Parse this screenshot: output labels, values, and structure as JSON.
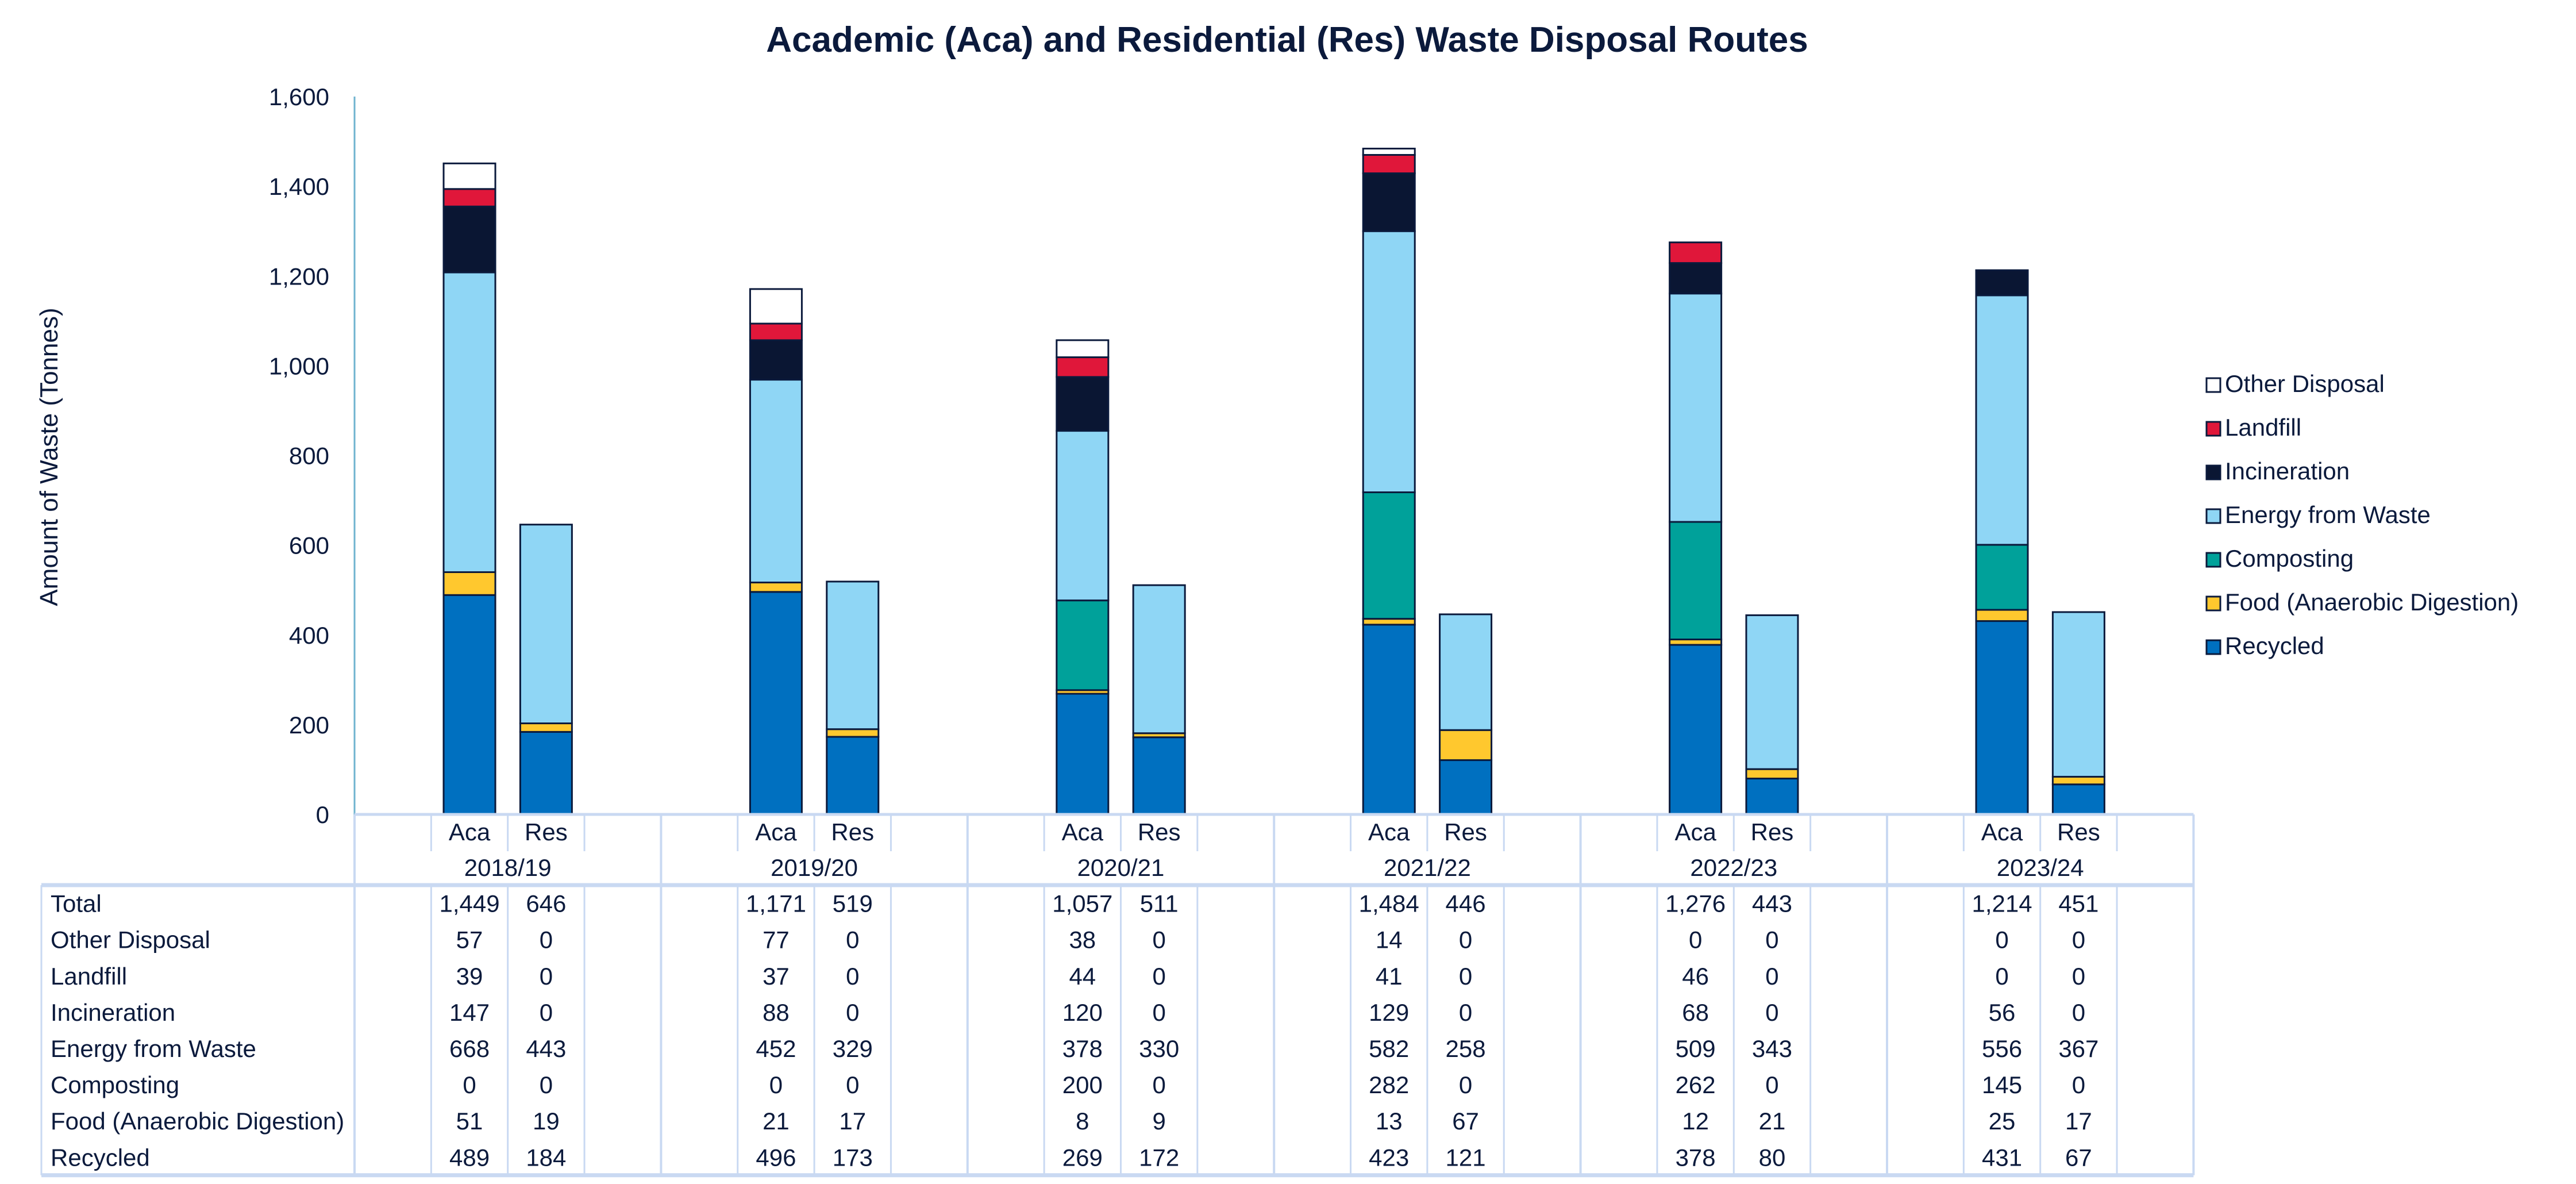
{
  "chart_data": {
    "type": "bar",
    "stacked": true,
    "title": "Academic (Aca) and Residential (Res) Waste Disposal Routes",
    "ylabel": "Amount of Waste (Tonnes)",
    "xlabel": "",
    "ylim": [
      0,
      1600
    ],
    "yticks": [
      "0",
      "200",
      "400",
      "600",
      "800",
      "1,000",
      "1,200",
      "1,400",
      "1,600"
    ],
    "ytick_values": [
      0,
      200,
      400,
      600,
      800,
      1000,
      1200,
      1400,
      1600
    ],
    "grid": false,
    "legend_placement": "right",
    "groups": [
      "2018/19",
      "2019/20",
      "2020/21",
      "2021/22",
      "2022/23",
      "2023/24"
    ],
    "subcategories": [
      "Aca",
      "Res"
    ],
    "series": [
      {
        "name": "Recycled",
        "color": "#0070C0",
        "values": [
          [
            489,
            184
          ],
          [
            496,
            173
          ],
          [
            269,
            172
          ],
          [
            423,
            121
          ],
          [
            378,
            80
          ],
          [
            431,
            67
          ]
        ]
      },
      {
        "name": "Food (Anaerobic Digestion)",
        "color": "#FFC82E",
        "values": [
          [
            51,
            19
          ],
          [
            21,
            17
          ],
          [
            8,
            9
          ],
          [
            13,
            67
          ],
          [
            12,
            21
          ],
          [
            25,
            17
          ]
        ]
      },
      {
        "name": "Composting",
        "color": "#00A19A",
        "values": [
          [
            0,
            0
          ],
          [
            0,
            0
          ],
          [
            200,
            0
          ],
          [
            282,
            0
          ],
          [
            262,
            0
          ],
          [
            145,
            0
          ]
        ]
      },
      {
        "name": "Energy from Waste",
        "color": "#8FD6F5",
        "values": [
          [
            668,
            443
          ],
          [
            452,
            329
          ],
          [
            378,
            330
          ],
          [
            582,
            258
          ],
          [
            509,
            343
          ],
          [
            556,
            367
          ]
        ]
      },
      {
        "name": "Incineration",
        "color": "#0A1633",
        "values": [
          [
            147,
            0
          ],
          [
            88,
            0
          ],
          [
            120,
            0
          ],
          [
            129,
            0
          ],
          [
            68,
            0
          ],
          [
            56,
            0
          ]
        ]
      },
      {
        "name": "Landfill",
        "color": "#E0173A",
        "values": [
          [
            39,
            0
          ],
          [
            37,
            0
          ],
          [
            44,
            0
          ],
          [
            41,
            0
          ],
          [
            46,
            0
          ],
          [
            0,
            0
          ]
        ]
      },
      {
        "name": "Other Disposal",
        "color": "#FFFFFF",
        "values": [
          [
            57,
            0
          ],
          [
            77,
            0
          ],
          [
            38,
            0
          ],
          [
            14,
            0
          ],
          [
            0,
            0
          ],
          [
            0,
            0
          ]
        ]
      }
    ],
    "legend_order": [
      "Other Disposal",
      "Landfill",
      "Incineration",
      "Energy from Waste",
      "Composting",
      "Food (Anaerobic Digestion)",
      "Recycled"
    ],
    "table": {
      "rows": [
        {
          "label": "Total",
          "values": [
            [
              "1,449",
              "646"
            ],
            [
              "1,171",
              "519"
            ],
            [
              "1,057",
              "511"
            ],
            [
              "1,484",
              "446"
            ],
            [
              "1,276",
              "443"
            ],
            [
              "1,214",
              "451"
            ]
          ]
        },
        {
          "label": "Other Disposal",
          "values": [
            [
              "57",
              "0"
            ],
            [
              "77",
              "0"
            ],
            [
              "38",
              "0"
            ],
            [
              "14",
              "0"
            ],
            [
              "0",
              "0"
            ],
            [
              "0",
              "0"
            ]
          ]
        },
        {
          "label": "Landfill",
          "values": [
            [
              "39",
              "0"
            ],
            [
              "37",
              "0"
            ],
            [
              "44",
              "0"
            ],
            [
              "41",
              "0"
            ],
            [
              "46",
              "0"
            ],
            [
              "0",
              "0"
            ]
          ]
        },
        {
          "label": "Incineration",
          "values": [
            [
              "147",
              "0"
            ],
            [
              "88",
              "0"
            ],
            [
              "120",
              "0"
            ],
            [
              "129",
              "0"
            ],
            [
              "68",
              "0"
            ],
            [
              "56",
              "0"
            ]
          ]
        },
        {
          "label": "Energy from Waste",
          "values": [
            [
              "668",
              "443"
            ],
            [
              "452",
              "329"
            ],
            [
              "378",
              "330"
            ],
            [
              "582",
              "258"
            ],
            [
              "509",
              "343"
            ],
            [
              "556",
              "367"
            ]
          ]
        },
        {
          "label": "Composting",
          "values": [
            [
              "0",
              "0"
            ],
            [
              "0",
              "0"
            ],
            [
              "200",
              "0"
            ],
            [
              "282",
              "0"
            ],
            [
              "262",
              "0"
            ],
            [
              "145",
              "0"
            ]
          ]
        },
        {
          "label": "Food (Anaerobic Digestion)",
          "values": [
            [
              "51",
              "19"
            ],
            [
              "21",
              "17"
            ],
            [
              "8",
              "9"
            ],
            [
              "13",
              "67"
            ],
            [
              "12",
              "21"
            ],
            [
              "25",
              "17"
            ]
          ]
        },
        {
          "label": "Recycled",
          "values": [
            [
              "489",
              "184"
            ],
            [
              "496",
              "173"
            ],
            [
              "269",
              "172"
            ],
            [
              "423",
              "121"
            ],
            [
              "378",
              "80"
            ],
            [
              "431",
              "67"
            ]
          ]
        }
      ]
    }
  }
}
